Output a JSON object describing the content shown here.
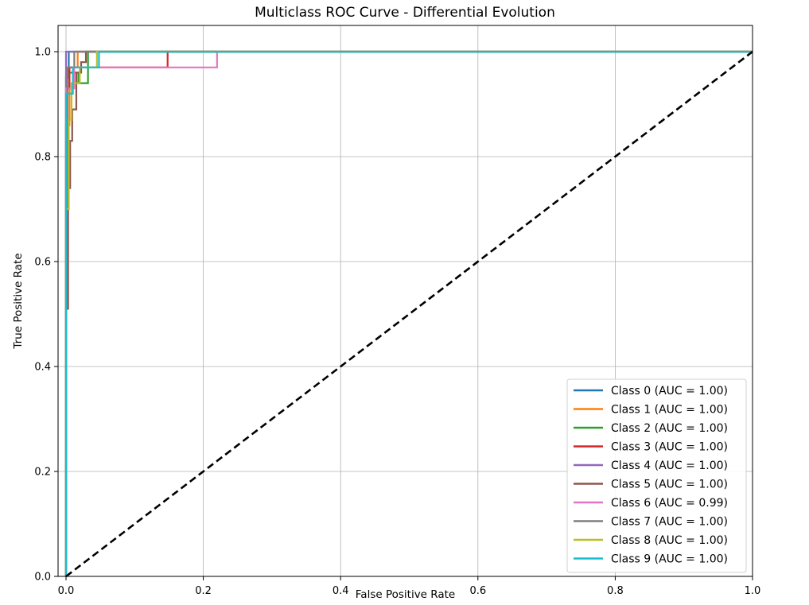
{
  "chart_data": {
    "type": "line",
    "title": "Multiclass ROC Curve - Differential Evolution",
    "xlabel": "False Positive Rate",
    "ylabel": "True Positive Rate",
    "xlim": [
      0.0,
      1.0
    ],
    "ylim": [
      0.0,
      1.05
    ],
    "xticks": [
      0.0,
      0.2,
      0.4,
      0.6,
      0.8,
      1.0
    ],
    "yticks": [
      0.0,
      0.2,
      0.4,
      0.6,
      0.8,
      1.0
    ],
    "xtick_labels": [
      "0.0",
      "0.2",
      "0.4",
      "0.6",
      "0.8",
      "1.0"
    ],
    "ytick_labels": [
      "0.0",
      "0.2",
      "0.4",
      "0.6",
      "0.8",
      "1.0"
    ],
    "grid": true,
    "legend_position": "lower-right",
    "diagonal": {
      "x": [
        0,
        1
      ],
      "y": [
        0,
        1
      ],
      "color": "#000000",
      "style": "dashed"
    },
    "series": [
      {
        "name": "Class 0 (AUC = 1.00)",
        "color": "#1f77b4",
        "x": [
          0,
          0,
          0.004,
          0.004,
          1
        ],
        "y": [
          0,
          0.95,
          0.95,
          1.0,
          1.0
        ]
      },
      {
        "name": "Class 1 (AUC = 1.00)",
        "color": "#ff7f0e",
        "x": [
          0,
          0,
          0.005,
          0.005,
          0.017,
          0.017,
          1
        ],
        "y": [
          0,
          0.86,
          0.86,
          0.97,
          0.97,
          1.0,
          1.0
        ]
      },
      {
        "name": "Class 2 (AUC = 1.00)",
        "color": "#2ca02c",
        "x": [
          0,
          0,
          0.018,
          0.018,
          0.032,
          0.032,
          1
        ],
        "y": [
          0,
          0.96,
          0.96,
          0.94,
          0.94,
          1.0,
          1.0
        ]
      },
      {
        "name": "Class 3 (AUC = 1.00)",
        "color": "#d62728",
        "x": [
          0,
          0,
          0.005,
          0.005,
          0.148,
          0.148,
          1
        ],
        "y": [
          0,
          0.93,
          0.93,
          0.97,
          0.97,
          1.0,
          1.0
        ]
      },
      {
        "name": "Class 4 (AUC = 1.00)",
        "color": "#9467bd",
        "x": [
          0,
          0,
          1
        ],
        "y": [
          0,
          1.0,
          1.0
        ]
      },
      {
        "name": "Class 5 (AUC = 1.00)",
        "color": "#8c564b",
        "x": [
          0,
          0,
          0.003,
          0.003,
          0.006,
          0.006,
          0.009,
          0.009,
          0.015,
          0.015,
          0.022,
          0.022,
          0.029,
          0.029,
          1
        ],
        "y": [
          0,
          0.51,
          0.51,
          0.74,
          0.74,
          0.83,
          0.83,
          0.89,
          0.89,
          0.96,
          0.96,
          0.98,
          0.98,
          1.0,
          1.0
        ]
      },
      {
        "name": "Class 6 (AUC = 0.99)",
        "color": "#e377c2",
        "x": [
          0,
          0,
          0.012,
          0.012,
          0.22,
          0.22,
          1
        ],
        "y": [
          0,
          0.93,
          0.93,
          0.97,
          0.97,
          1.0,
          1.0
        ]
      },
      {
        "name": "Class 7 (AUC = 1.00)",
        "color": "#7f7f7f",
        "x": [
          0,
          0,
          0.002,
          0.002,
          0.012,
          0.012,
          1
        ],
        "y": [
          0,
          0.7,
          0.7,
          0.97,
          0.97,
          1.0,
          1.0
        ]
      },
      {
        "name": "Class 8 (AUC = 1.00)",
        "color": "#bcbd22",
        "x": [
          0,
          0,
          0.004,
          0.004,
          0.008,
          0.008,
          0.02,
          0.02,
          0.045,
          0.045,
          1
        ],
        "y": [
          0,
          0.7,
          0.7,
          0.87,
          0.87,
          0.94,
          0.94,
          0.97,
          0.97,
          1.0,
          1.0
        ]
      },
      {
        "name": "Class 9 (AUC = 1.00)",
        "color": "#17becf",
        "x": [
          0,
          0,
          0.01,
          0.01,
          0.048,
          0.048,
          1
        ],
        "y": [
          0,
          0.92,
          0.92,
          0.97,
          0.97,
          1.0,
          1.0
        ]
      }
    ]
  }
}
